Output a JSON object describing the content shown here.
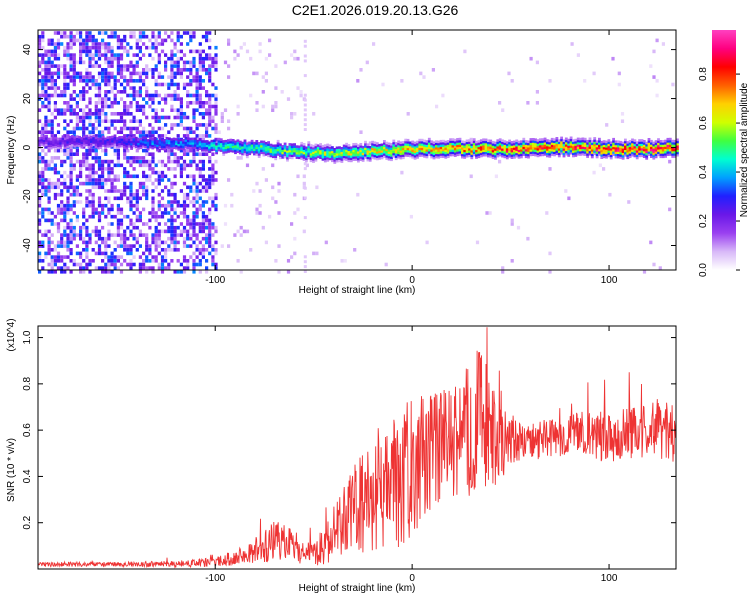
{
  "page": {
    "title": "C2E1.2026.019.20.13.G26"
  },
  "chart_data": [
    {
      "type": "heatmap",
      "title": "C2E1.2026.019.20.13.G26",
      "xlabel": "Height of straight line (km)",
      "ylabel": "Frequency (Hz)",
      "xlim": [
        -190,
        134
      ],
      "ylim": [
        -50,
        48
      ],
      "xticks": [
        -100,
        0,
        100
      ],
      "yticks": [
        -40,
        -20,
        0,
        20,
        40
      ],
      "colorbar": {
        "label": "Normalized spectral amplitude",
        "range": [
          0,
          0.98
        ],
        "ticks": [
          0.0,
          0.2,
          0.4,
          0.6,
          0.8
        ],
        "colormap": [
          "#ffffff",
          "#d8b8f8",
          "#9a40f0",
          "#6a18e8",
          "#2020ff",
          "#00a0ff",
          "#00ffd0",
          "#40ff40",
          "#d0ff00",
          "#ffd000",
          "#ff6000",
          "#ff0000",
          "#ff0080",
          "#ff40c0"
        ]
      },
      "ridge": {
        "description": "narrow band near 0 Hz",
        "x": [
          -190,
          -150,
          -130,
          -110,
          -100,
          -80,
          -60,
          -40,
          -20,
          0,
          20,
          40,
          60,
          80,
          100,
          120,
          134
        ],
        "center_hz": [
          3,
          3,
          2,
          2,
          1,
          0,
          -1,
          -2,
          -1,
          0,
          0,
          0,
          0,
          1,
          0,
          0,
          0
        ],
        "peak_amplitude": [
          0.25,
          0.3,
          0.4,
          0.4,
          0.5,
          0.55,
          0.6,
          0.65,
          0.7,
          0.75,
          0.8,
          0.85,
          0.9,
          0.9,
          0.92,
          0.9,
          0.9
        ]
      },
      "noise_region": {
        "x_from": -190,
        "x_to": -100
      }
    },
    {
      "type": "line",
      "xlabel": "Height of straight line (km)",
      "ylabel": "SNR (10 * v/v)",
      "y_multiplier": "(x10^4)",
      "xlim": [
        -190,
        134
      ],
      "ylim": [
        0,
        1.05
      ],
      "xticks": [
        -100,
        0,
        100
      ],
      "yticks": [
        0.2,
        0.4,
        0.6,
        0.8,
        1.0
      ],
      "series": [
        {
          "name": "SNR",
          "color": "#ee3333",
          "x": [
            -190,
            -150,
            -120,
            -100,
            -85,
            -70,
            -60,
            -50,
            -40,
            -30,
            -20,
            -10,
            0,
            10,
            20,
            30,
            35,
            40,
            50,
            60,
            80,
            100,
            120,
            134
          ],
          "y": [
            0.02,
            0.02,
            0.02,
            0.03,
            0.06,
            0.12,
            0.1,
            0.06,
            0.15,
            0.25,
            0.3,
            0.35,
            0.45,
            0.5,
            0.55,
            0.6,
            0.7,
            0.55,
            0.55,
            0.55,
            0.58,
            0.58,
            0.6,
            0.6
          ],
          "spread": [
            0.01,
            0.01,
            0.015,
            0.02,
            0.04,
            0.09,
            0.07,
            0.05,
            0.12,
            0.2,
            0.25,
            0.3,
            0.3,
            0.25,
            0.25,
            0.3,
            0.32,
            0.25,
            0.1,
            0.08,
            0.09,
            0.12,
            0.12,
            0.14
          ]
        }
      ]
    }
  ]
}
